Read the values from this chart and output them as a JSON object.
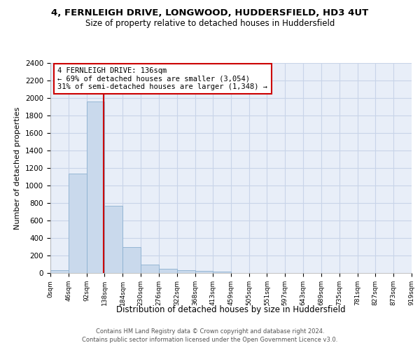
{
  "title_line1": "4, FERNLEIGH DRIVE, LONGWOOD, HUDDERSFIELD, HD3 4UT",
  "title_line2": "Size of property relative to detached houses in Huddersfield",
  "xlabel": "Distribution of detached houses by size in Huddersfield",
  "ylabel": "Number of detached properties",
  "bin_edges": [
    0,
    46,
    92,
    138,
    184,
    230,
    276,
    322,
    368,
    413,
    459,
    505,
    551,
    597,
    643,
    689,
    735,
    781,
    827,
    873,
    919
  ],
  "bin_labels": [
    "0sqm",
    "46sqm",
    "92sqm",
    "138sqm",
    "184sqm",
    "230sqm",
    "276sqm",
    "322sqm",
    "368sqm",
    "413sqm",
    "459sqm",
    "505sqm",
    "551sqm",
    "597sqm",
    "643sqm",
    "689sqm",
    "735sqm",
    "781sqm",
    "827sqm",
    "873sqm",
    "919sqm"
  ],
  "bar_values": [
    35,
    1140,
    1960,
    770,
    300,
    100,
    45,
    35,
    25,
    20,
    0,
    0,
    0,
    0,
    0,
    0,
    0,
    0,
    0,
    0
  ],
  "bar_color": "#c9d9ec",
  "bar_edgecolor": "#8cb0d0",
  "property_size": 136,
  "property_line_color": "#cc0000",
  "annotation_text": "4 FERNLEIGH DRIVE: 136sqm\n← 69% of detached houses are smaller (3,054)\n31% of semi-detached houses are larger (1,348) →",
  "annotation_box_color": "#cc0000",
  "ylim": [
    0,
    2400
  ],
  "yticks": [
    0,
    200,
    400,
    600,
    800,
    1000,
    1200,
    1400,
    1600,
    1800,
    2000,
    2200,
    2400
  ],
  "grid_color": "#c8d4e8",
  "bg_color": "#e8eef8",
  "footer_line1": "Contains HM Land Registry data © Crown copyright and database right 2024.",
  "footer_line2": "Contains public sector information licensed under the Open Government Licence v3.0."
}
